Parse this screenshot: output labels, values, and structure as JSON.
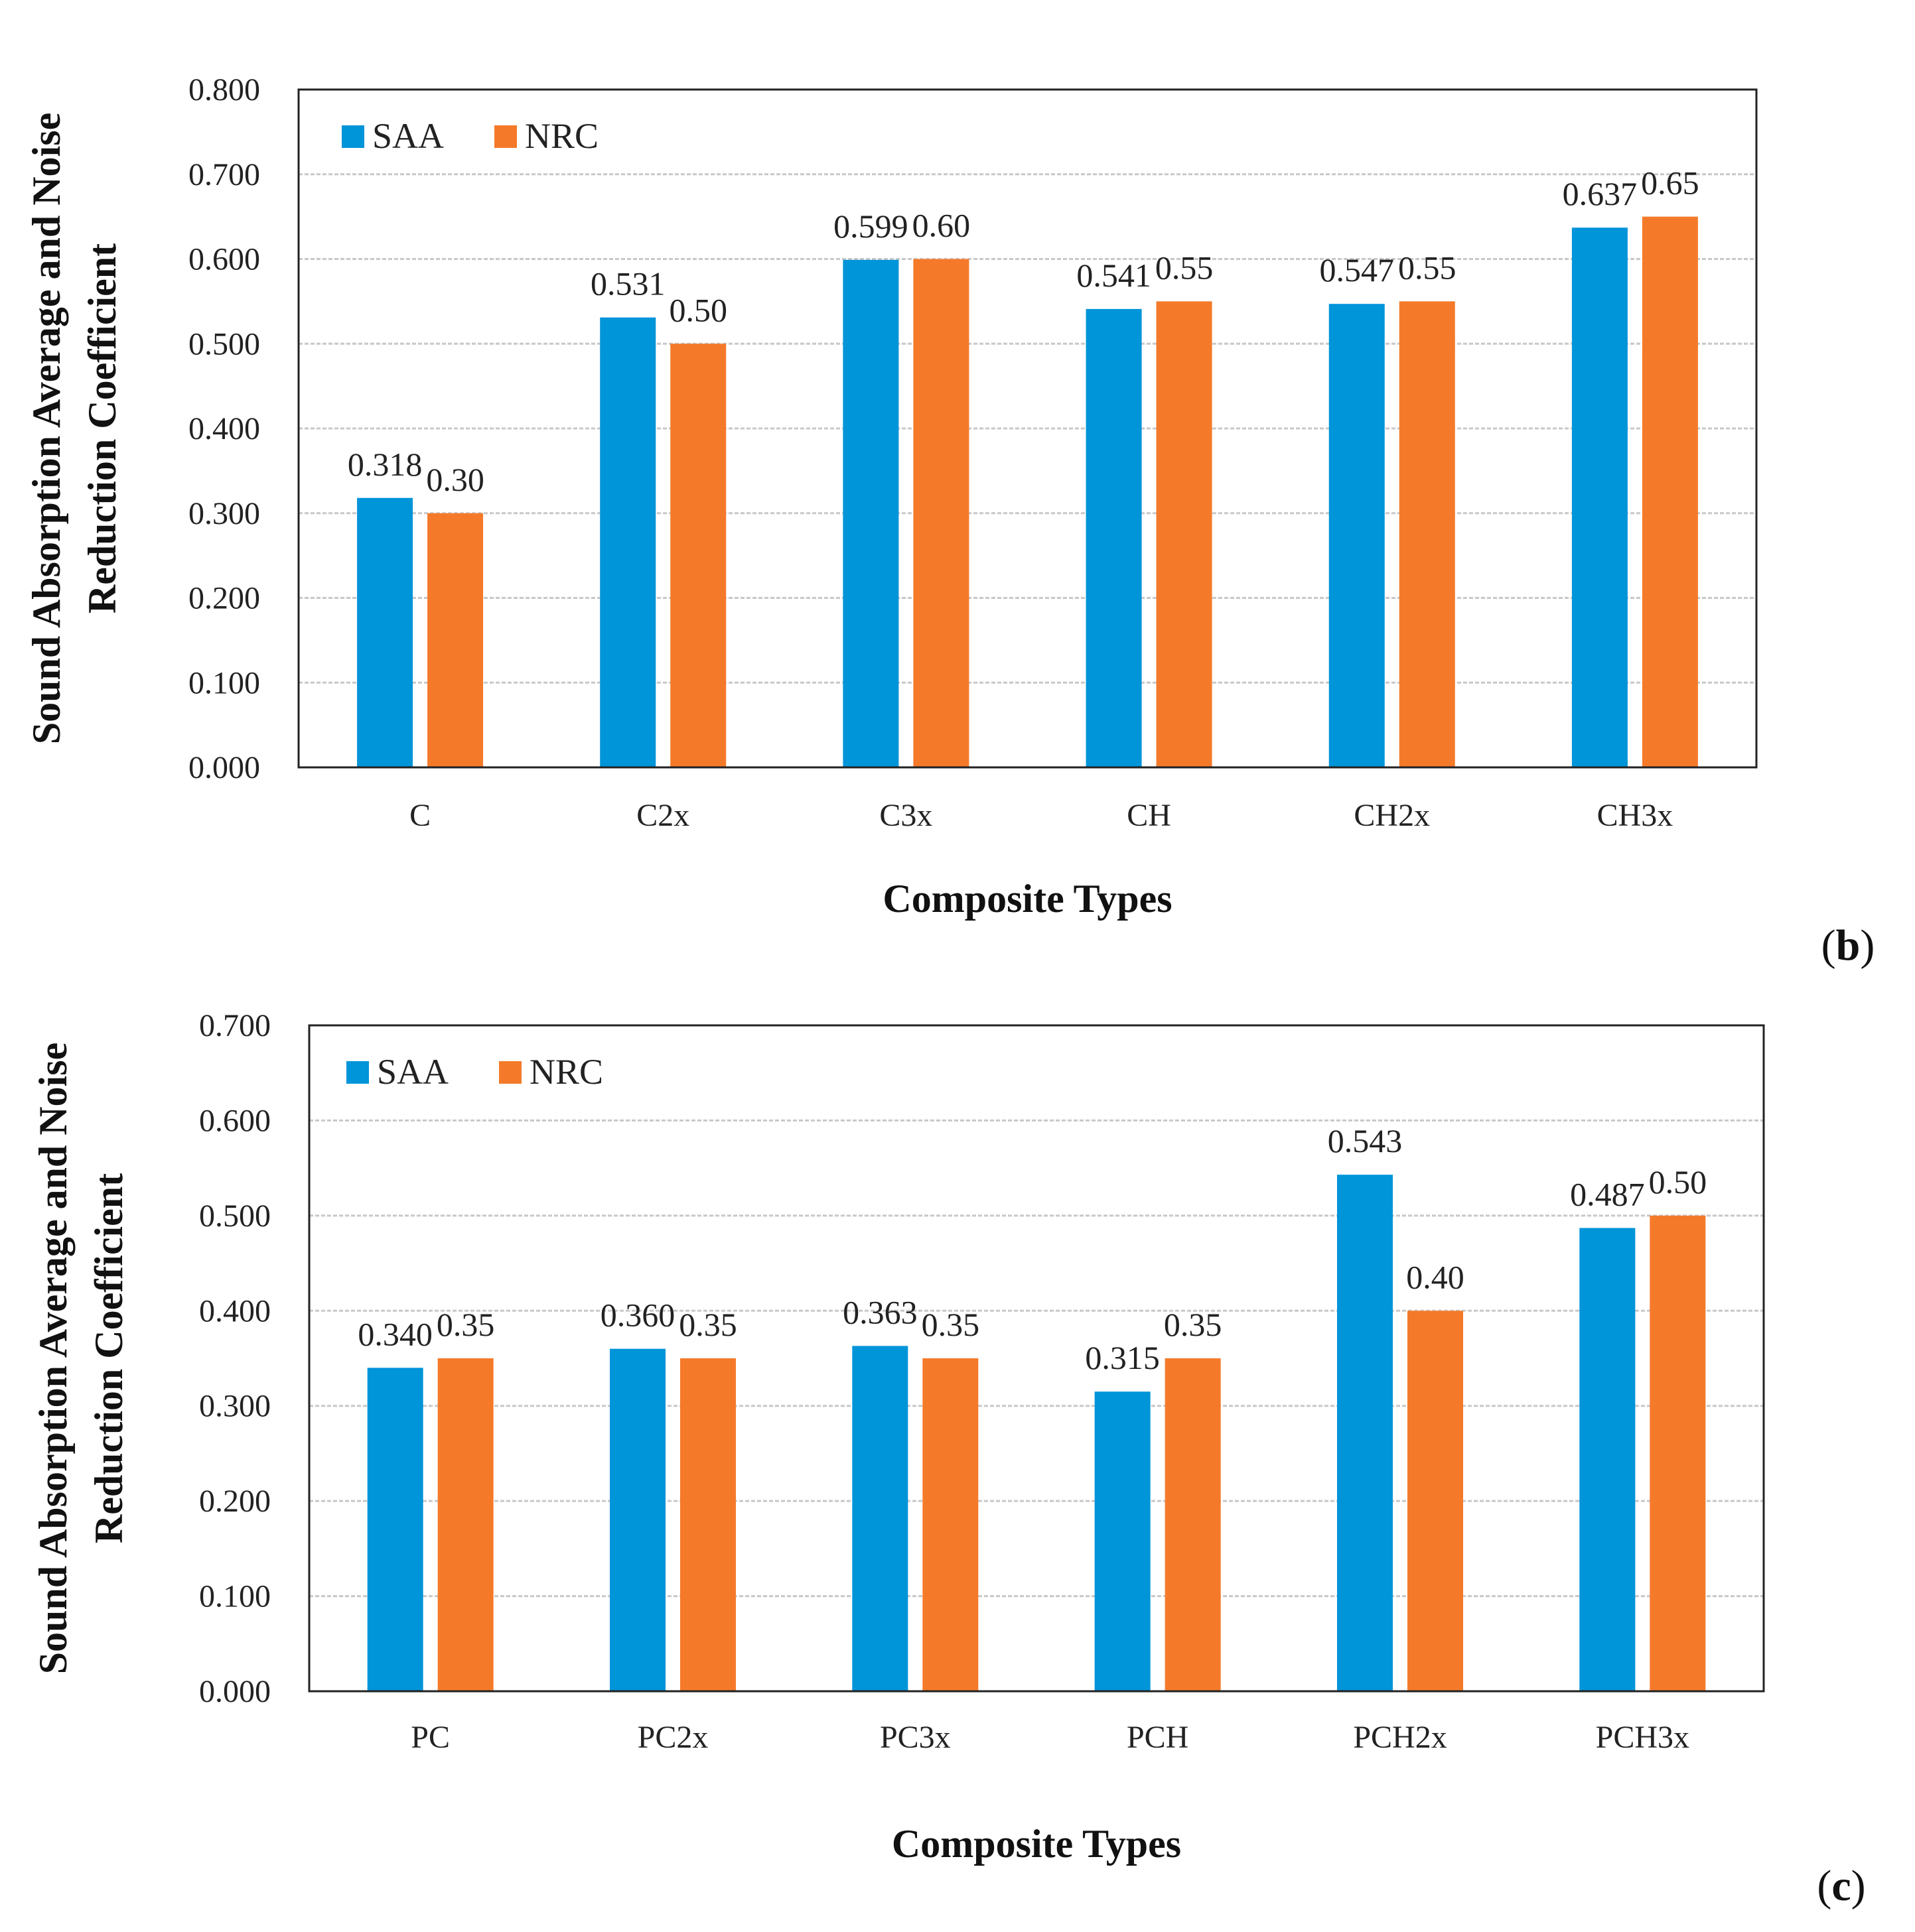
{
  "chart_data": [
    {
      "type": "bar",
      "panel_label": "b",
      "title": "",
      "xlabel": "Composite Types",
      "ylabel_line1": "Sound Absorption Average and Noise",
      "ylabel_line2": "Reduction Coefficient",
      "ylim": [
        0,
        0.8
      ],
      "yticks": [
        "0.000",
        "0.100",
        "0.200",
        "0.300",
        "0.400",
        "0.500",
        "0.600",
        "0.700",
        "0.800"
      ],
      "grid": true,
      "legend_position": "top-left",
      "categories": [
        "C",
        "C2x",
        "C3x",
        "CH",
        "CH2x",
        "CH3x"
      ],
      "series": [
        {
          "name": "SAA",
          "color": "#0094d9",
          "values": [
            0.318,
            0.531,
            0.599,
            0.541,
            0.547,
            0.637
          ],
          "labels": [
            "0.318",
            "0.531",
            "0.599",
            "0.541",
            "0.547",
            "0.637"
          ]
        },
        {
          "name": "NRC",
          "color": "#f47a2a",
          "values": [
            0.3,
            0.5,
            0.6,
            0.55,
            0.55,
            0.65
          ],
          "labels": [
            "0.30",
            "0.50",
            "0.60",
            "0.55",
            "0.55",
            "0.65"
          ]
        }
      ]
    },
    {
      "type": "bar",
      "panel_label": "c",
      "title": "",
      "xlabel": "Composite Types",
      "ylabel_line1": "Sound Absorption Average and Noise",
      "ylabel_line2": "Reduction Coefficient",
      "ylim": [
        0,
        0.7
      ],
      "yticks": [
        "0.000",
        "0.100",
        "0.200",
        "0.300",
        "0.400",
        "0.500",
        "0.600",
        "0.700"
      ],
      "grid": true,
      "legend_position": "top-left",
      "categories": [
        "PC",
        "PC2x",
        "PC3x",
        "PCH",
        "PCH2x",
        "PCH3x"
      ],
      "series": [
        {
          "name": "SAA",
          "color": "#0094d9",
          "values": [
            0.34,
            0.36,
            0.363,
            0.315,
            0.543,
            0.487
          ],
          "labels": [
            "0.340",
            "0.360",
            "0.363",
            "0.315",
            "0.543",
            "0.487"
          ]
        },
        {
          "name": "NRC",
          "color": "#f47a2a",
          "values": [
            0.35,
            0.35,
            0.35,
            0.35,
            0.4,
            0.5
          ],
          "labels": [
            "0.35",
            "0.35",
            "0.35",
            "0.35",
            "0.40",
            "0.50"
          ]
        }
      ]
    }
  ]
}
